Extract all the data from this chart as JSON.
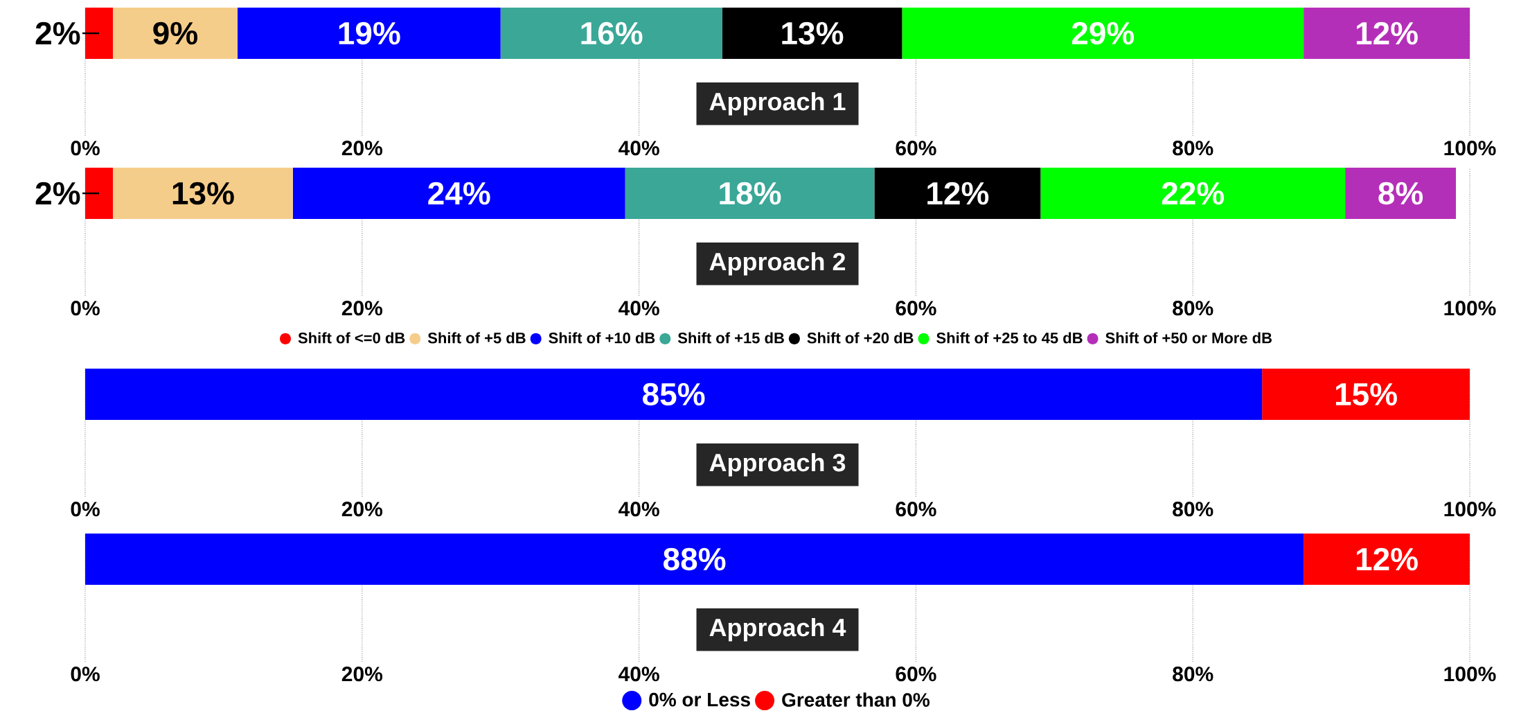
{
  "chart_data": [
    {
      "type": "bar",
      "orientation": "horizontal",
      "stacked": true,
      "categories": [
        null
      ],
      "xlabel": "Approach 1",
      "xlim": [
        0,
        100
      ],
      "xticks": [
        {
          "value": 0,
          "label": "0%"
        },
        {
          "value": 20,
          "label": "20%"
        },
        {
          "value": 40,
          "label": "40%"
        },
        {
          "value": 60,
          "label": "60%"
        },
        {
          "value": 80,
          "label": "80%"
        },
        {
          "value": 100,
          "label": "100%"
        }
      ],
      "grid": "x",
      "tick_labels": "x",
      "series": [
        {
          "color": "#ff0000",
          "values": [
            2
          ],
          "value_labels": [
            "2%"
          ]
        },
        {
          "color": "#f5cd8a",
          "values": [
            9
          ],
          "value_labels": [
            "9%"
          ]
        },
        {
          "color": "#0000ff",
          "values": [
            19
          ],
          "value_labels": [
            "19%"
          ]
        },
        {
          "color": "#3aa797",
          "values": [
            16
          ],
          "value_labels": [
            "16%"
          ]
        },
        {
          "color": "#000000",
          "values": [
            13
          ],
          "value_labels": [
            "13%"
          ]
        },
        {
          "color": "#00ff00",
          "values": [
            29
          ],
          "value_labels": [
            "29%"
          ]
        },
        {
          "color": "#b42fb8",
          "values": [
            12
          ],
          "value_labels": [
            "12%"
          ]
        }
      ]
    },
    {
      "type": "bar",
      "orientation": "horizontal",
      "stacked": true,
      "categories": [
        null
      ],
      "xlabel": "Approach 2",
      "xlim": [
        0,
        100
      ],
      "xticks": [
        {
          "value": 0,
          "label": "0%"
        },
        {
          "value": 20,
          "label": "20%"
        },
        {
          "value": 40,
          "label": "40%"
        },
        {
          "value": 60,
          "label": "60%"
        },
        {
          "value": 80,
          "label": "80%"
        },
        {
          "value": 100,
          "label": "100%"
        }
      ],
      "grid": "x",
      "tick_labels": "x",
      "legend": "bottom",
      "series": [
        {
          "name": "Shift of <=0 dB",
          "color": "#ff0000",
          "values": [
            2
          ],
          "value_labels": [
            "2%"
          ]
        },
        {
          "name": "Shift of +5 dB",
          "color": "#f5cd8a",
          "values": [
            13
          ],
          "value_labels": [
            "13%"
          ]
        },
        {
          "name": "Shift of +10 dB",
          "color": "#0000ff",
          "values": [
            24
          ],
          "value_labels": [
            "24%"
          ]
        },
        {
          "name": "Shift of +15 dB",
          "color": "#3aa797",
          "values": [
            18
          ],
          "value_labels": [
            "18%"
          ]
        },
        {
          "name": "Shift of +20 dB",
          "color": "#000000",
          "values": [
            12
          ],
          "value_labels": [
            "12%"
          ]
        },
        {
          "name": "Shift of +25 to 45 dB",
          "color": "#00ff00",
          "values": [
            22
          ],
          "value_labels": [
            "22%"
          ]
        },
        {
          "name": "Shift of +50 or More dB",
          "color": "#b42fb8",
          "values": [
            8
          ],
          "value_labels": [
            "8%"
          ]
        }
      ]
    },
    {
      "type": "bar",
      "orientation": "horizontal",
      "stacked": true,
      "categories": [
        null
      ],
      "xlabel": "Approach 3",
      "xlim": [
        0,
        100
      ],
      "xticks": [
        {
          "value": 0,
          "label": "0%"
        },
        {
          "value": 20,
          "label": "20%"
        },
        {
          "value": 40,
          "label": "40%"
        },
        {
          "value": 60,
          "label": "60%"
        },
        {
          "value": 80,
          "label": "80%"
        },
        {
          "value": 100,
          "label": "100%"
        }
      ],
      "grid": "x",
      "tick_labels": "x",
      "series": [
        {
          "color": "#0000ff",
          "values": [
            85
          ],
          "value_labels": [
            "85%"
          ]
        },
        {
          "color": "#ff0000",
          "values": [
            15
          ],
          "value_labels": [
            "15%"
          ]
        }
      ]
    },
    {
      "type": "bar",
      "orientation": "horizontal",
      "stacked": true,
      "categories": [
        null
      ],
      "xlabel": "Approach 4",
      "xlim": [
        0,
        100
      ],
      "xticks": [
        {
          "value": 0,
          "label": "0%"
        },
        {
          "value": 20,
          "label": "20%"
        },
        {
          "value": 40,
          "label": "40%"
        },
        {
          "value": 60,
          "label": "60%"
        },
        {
          "value": 80,
          "label": "80%"
        },
        {
          "value": 100,
          "label": "100%"
        }
      ],
      "grid": "x",
      "tick_labels": "x",
      "legend": "bottom",
      "series": [
        {
          "name": "0% or Less",
          "color": "#0000ff",
          "values": [
            88
          ],
          "value_labels": [
            "88%"
          ]
        },
        {
          "name": "Greater than 0%",
          "color": "#ff0000",
          "values": [
            12
          ],
          "value_labels": [
            "12%"
          ]
        }
      ]
    }
  ]
}
